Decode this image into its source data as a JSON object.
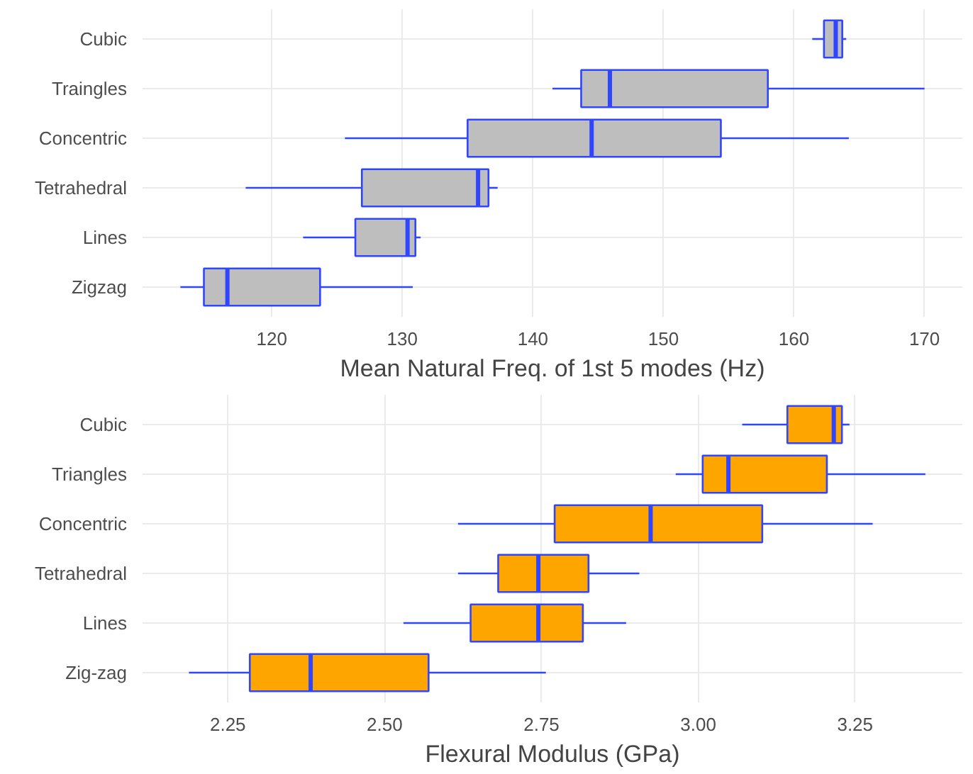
{
  "chart_data": [
    {
      "type": "box",
      "orientation": "horizontal",
      "xlabel": "Mean Natural Freq. of 1st 5 modes (Hz)",
      "categories": [
        "Cubic",
        "Traingles",
        "Concentric",
        "Tetrahedral",
        "Lines",
        "Zigzag"
      ],
      "xlim": [
        110.1,
        172.9
      ],
      "xticks": [
        120,
        130,
        140,
        150,
        160,
        170
      ],
      "grid": true,
      "series": [
        {
          "color": "#bebebe",
          "boxes": [
            {
              "low": 161.4,
              "q1": 162.3,
              "median": 163.2,
              "q3": 163.7,
              "high": 164.0
            },
            {
              "low": 141.5,
              "q1": 143.7,
              "median": 145.9,
              "q3": 158.0,
              "high": 170.0
            },
            {
              "low": 125.6,
              "q1": 135.0,
              "median": 144.5,
              "q3": 154.4,
              "high": 164.2
            },
            {
              "low": 118.0,
              "q1": 126.9,
              "median": 135.8,
              "q3": 136.6,
              "high": 137.3
            },
            {
              "low": 122.4,
              "q1": 126.4,
              "median": 130.4,
              "q3": 131.0,
              "high": 131.4
            },
            {
              "low": 113.0,
              "q1": 114.8,
              "median": 116.6,
              "q3": 123.7,
              "high": 130.8
            }
          ]
        }
      ]
    },
    {
      "type": "box",
      "orientation": "horizontal",
      "xlabel": "Flexural Modulus (GPa)",
      "categories": [
        "Cubic",
        "Triangles",
        "Concentric",
        "Tetrahedral",
        "Lines",
        "Zig-zag"
      ],
      "xlim": [
        2.114,
        3.421
      ],
      "xticks": [
        {
          "value": 2.25,
          "label": "2.25"
        },
        {
          "value": 2.5,
          "label": "2.50"
        },
        {
          "value": 2.75,
          "label": "2.75"
        },
        {
          "value": 3.0,
          "label": "3.00"
        },
        {
          "value": 3.25,
          "label": "3.25"
        }
      ],
      "grid": true,
      "series": [
        {
          "color": "#ffa500",
          "boxes": [
            {
              "low": 3.07,
              "q1": 3.142,
              "median": 3.216,
              "q3": 3.229,
              "high": 3.241
            },
            {
              "low": 2.964,
              "q1": 3.007,
              "median": 3.048,
              "q3": 3.205,
              "high": 3.362
            },
            {
              "low": 2.617,
              "q1": 2.771,
              "median": 2.924,
              "q3": 3.102,
              "high": 3.278
            },
            {
              "low": 2.617,
              "q1": 2.681,
              "median": 2.745,
              "q3": 2.825,
              "high": 2.906
            },
            {
              "low": 2.53,
              "q1": 2.637,
              "median": 2.745,
              "q3": 2.816,
              "high": 2.885
            },
            {
              "low": 2.188,
              "q1": 2.285,
              "median": 2.382,
              "q3": 2.57,
              "high": 2.757
            }
          ]
        }
      ]
    }
  ]
}
